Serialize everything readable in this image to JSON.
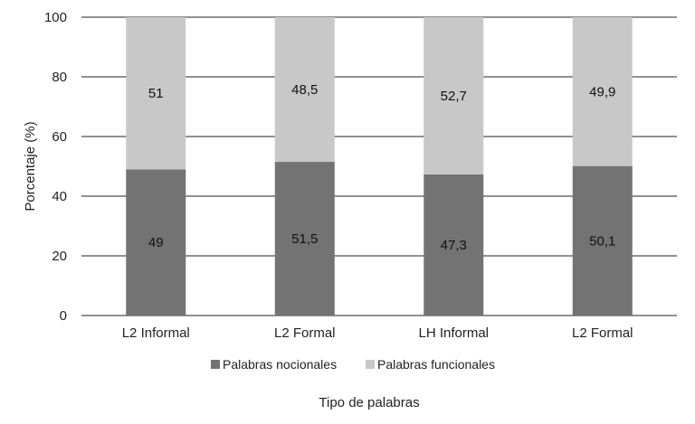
{
  "chart_data": {
    "type": "bar",
    "stacked": true,
    "categories": [
      "L2 Informal",
      "L2 Formal",
      "LH Informal",
      "L2 Formal"
    ],
    "series": [
      {
        "name": "Palabras nocionales",
        "values": [
          49,
          51.5,
          47.3,
          50.1
        ],
        "labels": [
          "49",
          "51,5",
          "47,3",
          "50,1"
        ],
        "color": "#737373"
      },
      {
        "name": "Palabras funcionales",
        "values": [
          51,
          48.5,
          52.7,
          49.9
        ],
        "labels": [
          "51",
          "48,5",
          "52,7",
          "49,9"
        ],
        "color": "#c8c8c8"
      }
    ],
    "ylabel": "Porcentaje (%)",
    "xlabel": "Tipo de palabras",
    "ylim": [
      0,
      100
    ],
    "yticks": [
      0,
      20,
      40,
      60,
      80,
      100
    ],
    "grid": true,
    "legend": "bottom"
  }
}
